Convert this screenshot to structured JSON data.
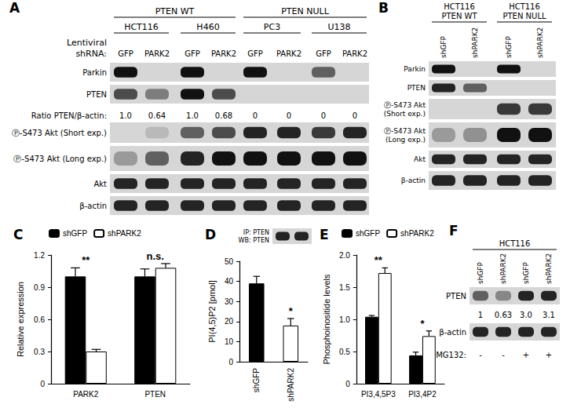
{
  "blots": {
    "A": {
      "title": "A",
      "headers": [
        [
          {
            "lines": [
              "PTEN WT"
            ],
            "span": 4
          },
          {
            "lines": [
              "PTEN NULL"
            ],
            "span": 4
          }
        ],
        [
          {
            "lines": [
              "HCT116"
            ],
            "span": 2
          },
          {
            "lines": [
              "H460"
            ],
            "span": 2
          },
          {
            "lines": [
              "PC3"
            ],
            "span": 2
          },
          {
            "lines": [
              "U138"
            ],
            "span": 2
          }
        ]
      ],
      "lane_title": [
        "Lentiviral",
        "shRNA:"
      ],
      "lanes": [
        "GFP",
        "PARK2",
        "GFP",
        "PARK2",
        "GFP",
        "PARK2",
        "GFP",
        "PARK2"
      ],
      "rows": [
        {
          "label": "Parkin",
          "bands": [
            1,
            0,
            1,
            0,
            1,
            0,
            0.6,
            0
          ]
        },
        {
          "label": "PTEN",
          "bands": [
            0.7,
            0.45,
            1,
            0.7,
            0,
            0,
            0,
            0
          ]
        },
        {
          "label": "Ratio PTEN/β-actin:",
          "texts": [
            "1.0",
            "0.64",
            "1.0",
            "0.68",
            "0",
            "0",
            "0",
            "0"
          ]
        },
        {
          "label": "Ⓟ-S473 Akt (Short exp.)",
          "bands": [
            0,
            0.15,
            0.6,
            0.7,
            0.9,
            0.9,
            0.8,
            0.9
          ]
        },
        {
          "label": "Ⓟ-S473 Akt (Long exp.)",
          "bands": [
            0.3,
            0.6,
            0.9,
            1,
            1,
            1,
            1,
            1
          ]
        },
        {
          "label": "Akt",
          "bands": [
            0.9,
            0.9,
            0.9,
            0.9,
            0.9,
            0.9,
            0.9,
            0.9
          ]
        },
        {
          "label": "β-actin",
          "bands": [
            0.9,
            0.9,
            0.9,
            0.9,
            0.9,
            0.9,
            0.9,
            0.9
          ]
        }
      ]
    },
    "B": {
      "title": "B",
      "headers": [
        [
          {
            "lines": [
              "HCT116",
              "PTEN WT"
            ],
            "span": 2
          },
          {
            "lines": [
              "HCT116",
              "PTEN NULL"
            ],
            "span": 2
          }
        ]
      ],
      "lanes": [
        "shGFP",
        "shPARK2",
        "shGFP",
        "shPARK2"
      ],
      "rows": [
        {
          "label": "Parkin",
          "bands": [
            1,
            0,
            1,
            0
          ]
        },
        {
          "label": "PTEN",
          "bands": [
            0.9,
            0.6,
            0,
            0
          ]
        },
        {
          "label": "Ⓟ-S473 Akt (Short exp.)",
          "bands": [
            0,
            0,
            0.8,
            0.8
          ]
        },
        {
          "label": "Ⓟ-S473 Akt (Long exp.)",
          "bands": [
            0.3,
            0.35,
            1,
            1
          ]
        },
        {
          "label": "Akt",
          "bands": [
            0.9,
            0.9,
            0.9,
            0.9
          ]
        },
        {
          "label": "β-actin",
          "bands": [
            0.9,
            0.9,
            0.9,
            0.9
          ]
        }
      ]
    },
    "D_inset": {
      "rows": [
        {
          "label": [
            "IP: PTEN",
            "WB: PTEN"
          ],
          "bands": [
            0.9,
            0.9
          ]
        }
      ]
    },
    "F": {
      "title": "F",
      "headers": [
        [
          {
            "lines": [
              "HCT116"
            ],
            "span": 4
          }
        ]
      ],
      "lanes": [
        "shGFP",
        "shPARK2",
        "shGFP",
        "shPARK2"
      ],
      "rows": [
        {
          "label": "PTEN",
          "bands": [
            0.6,
            0.4,
            0.9,
            0.9
          ]
        },
        {
          "texts": [
            "1",
            "0.63",
            "3.0",
            "3.1"
          ]
        },
        {
          "label": "β-actin",
          "bands": [
            0.9,
            0.9,
            0.9,
            0.9
          ]
        },
        {
          "label": "MG132:",
          "texts": [
            "-",
            "-",
            "+",
            "+"
          ]
        }
      ]
    }
  },
  "chart_data": [
    {
      "type": "bar",
      "title": "C",
      "y_label": "Relative expression",
      "categories": [
        "PARK2",
        "PTEN"
      ],
      "series": [
        {
          "name": "shGFP",
          "color": "#000000",
          "values": [
            1.0,
            1.0
          ],
          "errors": [
            0.08,
            0.07
          ]
        },
        {
          "name": "shPARK2",
          "color": "#ffffff",
          "values": [
            0.3,
            1.08
          ],
          "errors": [
            0.02,
            0.04
          ]
        }
      ],
      "ylim": [
        0,
        1.2
      ],
      "yticks": [
        0,
        0.3,
        0.6,
        0.9,
        1.2
      ],
      "grid": false,
      "legend": "top",
      "annotations": [
        {
          "text": "**",
          "category": "PARK2"
        },
        {
          "text": "n.s.",
          "category": "PTEN"
        }
      ]
    },
    {
      "type": "bar",
      "title": "D",
      "y_label": "PI(4,5)P2 [pmol]",
      "categories": [
        "shGFP",
        "shPARK2"
      ],
      "values": [
        39,
        18
      ],
      "errors": [
        3.5,
        3.5
      ],
      "colors": [
        "#000000",
        "#ffffff"
      ],
      "ylim": [
        0,
        50
      ],
      "yticks": [
        0,
        10,
        20,
        30,
        40,
        50
      ],
      "grid": false,
      "annotations": [
        {
          "text": "*",
          "category": "shPARK2"
        }
      ]
    },
    {
      "type": "bar",
      "title": "E",
      "y_label": "Phosphoinositide levels",
      "categories": [
        "PI3,4,5P3",
        "PI3,4P2"
      ],
      "series": [
        {
          "name": "shGFP",
          "color": "#000000",
          "values": [
            1.04,
            0.44
          ],
          "errors": [
            0.02,
            0.05
          ]
        },
        {
          "name": "shPARK2",
          "color": "#ffffff",
          "values": [
            1.72,
            0.74
          ],
          "errors": [
            0.08,
            0.08
          ]
        }
      ],
      "ylim": [
        0,
        2.0
      ],
      "yticks": [
        0,
        0.5,
        {
          "value": 1,
          "label": "1.0"
        },
        1.5,
        {
          "value": 2,
          "label": "2.0"
        }
      ],
      "grid": false,
      "legend": "top",
      "annotations": [
        {
          "text": "**",
          "category": "PI3,4,5P3"
        },
        {
          "text": "*",
          "category": "PI3,4P2"
        }
      ]
    }
  ]
}
